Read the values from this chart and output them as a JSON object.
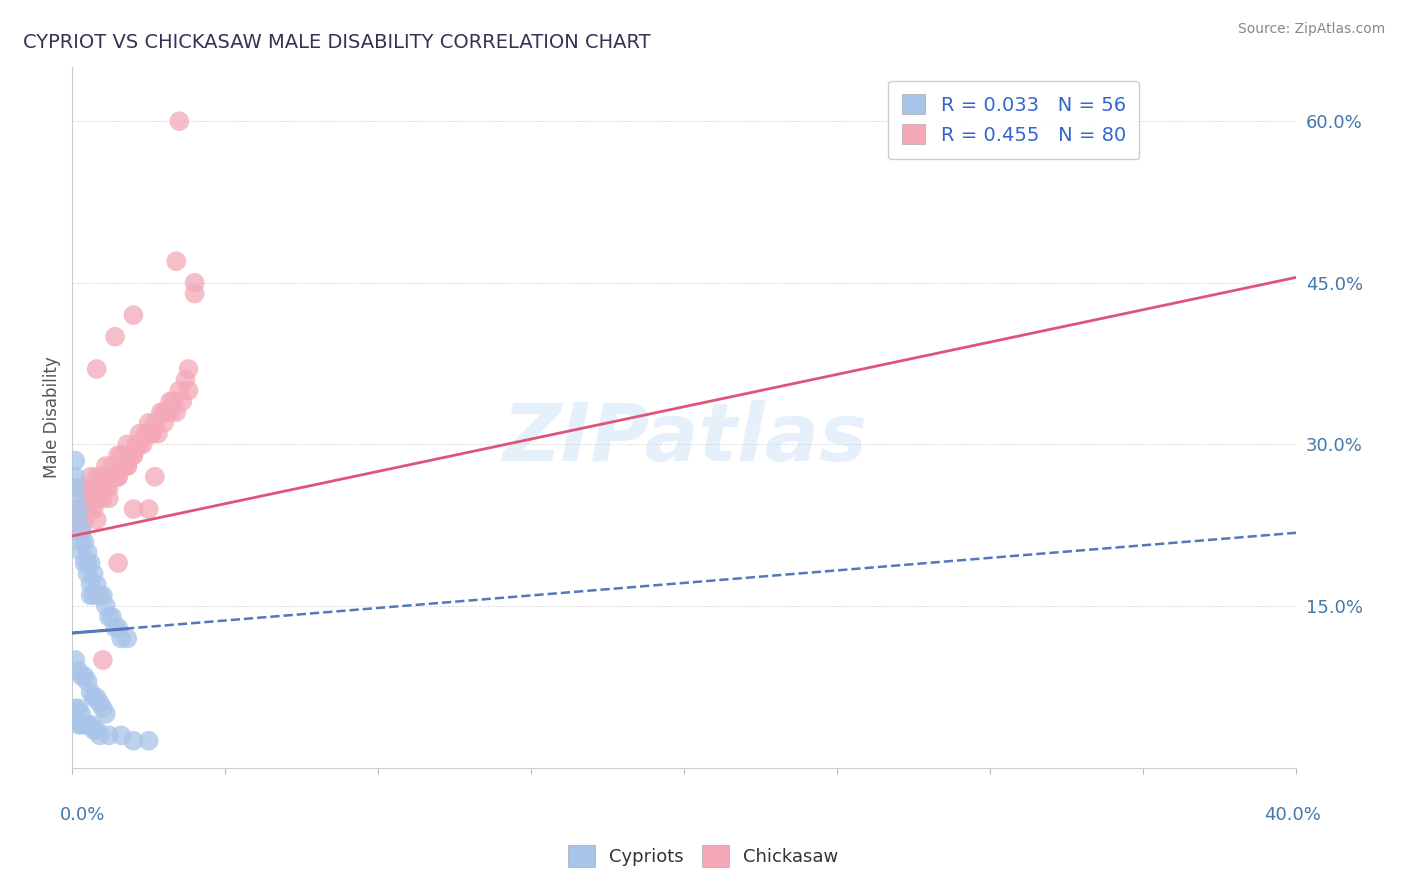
{
  "title": "CYPRIOT VS CHICKASAW MALE DISABILITY CORRELATION CHART",
  "source": "Source: ZipAtlas.com",
  "ylabel": "Male Disability",
  "right_yticklabels": [
    "15.0%",
    "30.0%",
    "45.0%",
    "60.0%"
  ],
  "right_ytick_vals": [
    0.15,
    0.3,
    0.45,
    0.6
  ],
  "legend_r1": "R = 0.033   N = 56",
  "legend_r2": "R = 0.455   N = 80",
  "cypriot_color": "#a8c4e8",
  "chickasaw_color": "#f4a8b8",
  "cypriot_line_color": "#5577bb",
  "chickasaw_line_color": "#dd5577",
  "watermark_text": "ZIPatlas",
  "xlim": [
    0.0,
    0.4
  ],
  "ylim": [
    0.0,
    0.65
  ],
  "cypriot_line_x0": 0.0,
  "cypriot_line_y0": 0.125,
  "cypriot_line_x1": 0.4,
  "cypriot_line_y1": 0.218,
  "chickasaw_line_x0": 0.0,
  "chickasaw_line_y0": 0.215,
  "chickasaw_line_x1": 0.4,
  "chickasaw_line_y1": 0.455,
  "cypriot_x": [
    0.001,
    0.001,
    0.001,
    0.001,
    0.001,
    0.002,
    0.002,
    0.002,
    0.003,
    0.003,
    0.003,
    0.003,
    0.004,
    0.004,
    0.004,
    0.005,
    0.005,
    0.005,
    0.005,
    0.006,
    0.006,
    0.006,
    0.006,
    0.007,
    0.007,
    0.007,
    0.008,
    0.008,
    0.009,
    0.009,
    0.01,
    0.01,
    0.011,
    0.011,
    0.012,
    0.013,
    0.014,
    0.015,
    0.016,
    0.018,
    0.001,
    0.001,
    0.002,
    0.002,
    0.003,
    0.003,
    0.004,
    0.005,
    0.006,
    0.007,
    0.008,
    0.009,
    0.012,
    0.016,
    0.02,
    0.025
  ],
  "cypriot_y": [
    0.285,
    0.27,
    0.26,
    0.25,
    0.1,
    0.24,
    0.23,
    0.09,
    0.22,
    0.21,
    0.2,
    0.085,
    0.21,
    0.19,
    0.085,
    0.2,
    0.19,
    0.18,
    0.08,
    0.19,
    0.17,
    0.16,
    0.07,
    0.18,
    0.16,
    0.065,
    0.17,
    0.065,
    0.16,
    0.06,
    0.16,
    0.055,
    0.15,
    0.05,
    0.14,
    0.14,
    0.13,
    0.13,
    0.12,
    0.12,
    0.055,
    0.045,
    0.055,
    0.04,
    0.05,
    0.04,
    0.04,
    0.04,
    0.04,
    0.035,
    0.035,
    0.03,
    0.03,
    0.03,
    0.025,
    0.025
  ],
  "chickasaw_x": [
    0.001,
    0.002,
    0.003,
    0.003,
    0.004,
    0.004,
    0.005,
    0.005,
    0.006,
    0.006,
    0.007,
    0.007,
    0.008,
    0.008,
    0.008,
    0.009,
    0.01,
    0.01,
    0.011,
    0.011,
    0.012,
    0.012,
    0.013,
    0.014,
    0.015,
    0.015,
    0.016,
    0.017,
    0.018,
    0.018,
    0.019,
    0.02,
    0.021,
    0.022,
    0.023,
    0.024,
    0.025,
    0.026,
    0.027,
    0.028,
    0.029,
    0.03,
    0.031,
    0.032,
    0.033,
    0.034,
    0.035,
    0.036,
    0.037,
    0.038,
    0.04,
    0.003,
    0.005,
    0.007,
    0.01,
    0.013,
    0.016,
    0.02,
    0.025,
    0.03,
    0.006,
    0.009,
    0.012,
    0.015,
    0.018,
    0.022,
    0.026,
    0.032,
    0.038,
    0.008,
    0.014,
    0.02,
    0.027,
    0.034,
    0.02,
    0.015,
    0.01,
    0.035,
    0.025,
    0.04
  ],
  "chickasaw_y": [
    0.22,
    0.23,
    0.24,
    0.26,
    0.25,
    0.23,
    0.24,
    0.26,
    0.27,
    0.25,
    0.26,
    0.24,
    0.27,
    0.25,
    0.23,
    0.26,
    0.27,
    0.25,
    0.28,
    0.26,
    0.27,
    0.25,
    0.28,
    0.27,
    0.29,
    0.27,
    0.29,
    0.28,
    0.3,
    0.28,
    0.29,
    0.29,
    0.3,
    0.31,
    0.3,
    0.31,
    0.32,
    0.31,
    0.32,
    0.31,
    0.33,
    0.32,
    0.33,
    0.34,
    0.34,
    0.33,
    0.35,
    0.34,
    0.36,
    0.35,
    0.45,
    0.22,
    0.24,
    0.25,
    0.26,
    0.27,
    0.28,
    0.29,
    0.31,
    0.33,
    0.24,
    0.25,
    0.26,
    0.27,
    0.28,
    0.3,
    0.31,
    0.33,
    0.37,
    0.37,
    0.4,
    0.42,
    0.27,
    0.47,
    0.24,
    0.19,
    0.1,
    0.6,
    0.24,
    0.44
  ]
}
